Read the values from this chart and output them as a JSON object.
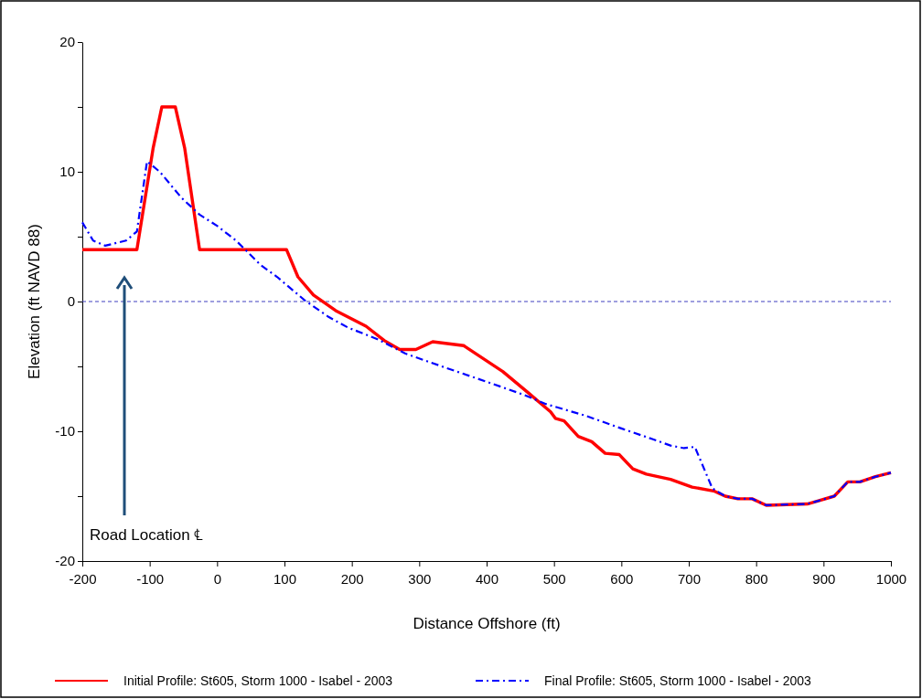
{
  "chart_data": {
    "type": "line",
    "xlabel": "Distance Offshore (ft)",
    "ylabel": "Elevation (ft NAVD 88)",
    "xlim": [
      -200,
      1000
    ],
    "xticks": [
      -200,
      -100,
      0,
      100,
      200,
      300,
      400,
      500,
      600,
      700,
      800,
      900,
      1000
    ],
    "ylim": [
      -20,
      20
    ],
    "yticks": [
      -20,
      {
        "value": -15,
        "label": null
      },
      -10,
      {
        "value": -5,
        "label": null
      },
      0,
      {
        "value": 5,
        "label": null
      },
      10,
      {
        "value": 15,
        "label": null
      },
      20
    ],
    "grid": false,
    "legend": "bottom",
    "marker": "none",
    "ref_lines": [
      {
        "axis": "y",
        "value": 0,
        "label": null,
        "color": "#4040c0",
        "line_style": "dashed"
      }
    ],
    "annotations": [
      "Road Location ℄"
    ],
    "series": [
      {
        "name": "Initial Profile: St605, Storm 1000 - Isabel - 2003",
        "color": "#ff0000",
        "line_style": "solid",
        "x": [
          -200,
          -119,
          -95,
          -82,
          -62,
          -48,
          -26,
          103,
          120,
          143,
          176,
          221,
          248,
          271,
          295,
          320,
          366,
          424,
          461,
          495,
          502,
          515,
          536,
          556,
          576,
          597,
          617,
          637,
          673,
          705,
          737,
          754,
          773,
          794,
          815,
          876,
          890,
          916,
          936,
          954,
          977,
          1000
        ],
        "values": [
          4,
          4,
          11.8,
          15,
          15,
          11.8,
          4,
          4,
          1.9,
          0.5,
          -0.7,
          -1.9,
          -3.0,
          -3.7,
          -3.7,
          -3.1,
          -3.4,
          -5.4,
          -7.0,
          -8.5,
          -9.0,
          -9.2,
          -10.4,
          -10.8,
          -11.7,
          -11.8,
          -12.9,
          -13.3,
          -13.7,
          -14.3,
          -14.6,
          -15.0,
          -15.2,
          -15.2,
          -15.7,
          -15.6,
          -15.4,
          -15.0,
          -13.9,
          -13.9,
          -13.5,
          -13.2
        ]
      },
      {
        "name": "Final Profile: St605, Storm 1000 - Isabel - 2003",
        "color": "#0000ff",
        "line_style": "dashed",
        "x": [
          -200,
          -184,
          -166,
          -135,
          -119,
          -104,
          -85,
          -53,
          -26,
          1,
          28,
          65,
          89,
          130,
          166,
          194,
          238,
          279,
          339,
          401,
          456,
          488,
          547,
          601,
          646,
          673,
          693,
          709,
          735,
          754,
          773,
          794,
          815,
          876,
          890,
          916,
          936,
          954,
          977,
          1000
        ],
        "values": [
          6.1,
          4.7,
          4.3,
          4.7,
          5.4,
          10.8,
          10.0,
          8.0,
          6.7,
          5.8,
          4.7,
          2.8,
          1.9,
          0.1,
          -1.2,
          -2.0,
          -2.9,
          -4.0,
          -5.1,
          -6.2,
          -7.2,
          -7.9,
          -8.8,
          -9.8,
          -10.6,
          -11.1,
          -11.3,
          -11.2,
          -14.4,
          -15.0,
          -15.2,
          -15.2,
          -15.7,
          -15.6,
          -15.4,
          -15.0,
          -13.9,
          -13.9,
          -13.5,
          -13.2
        ]
      }
    ]
  }
}
